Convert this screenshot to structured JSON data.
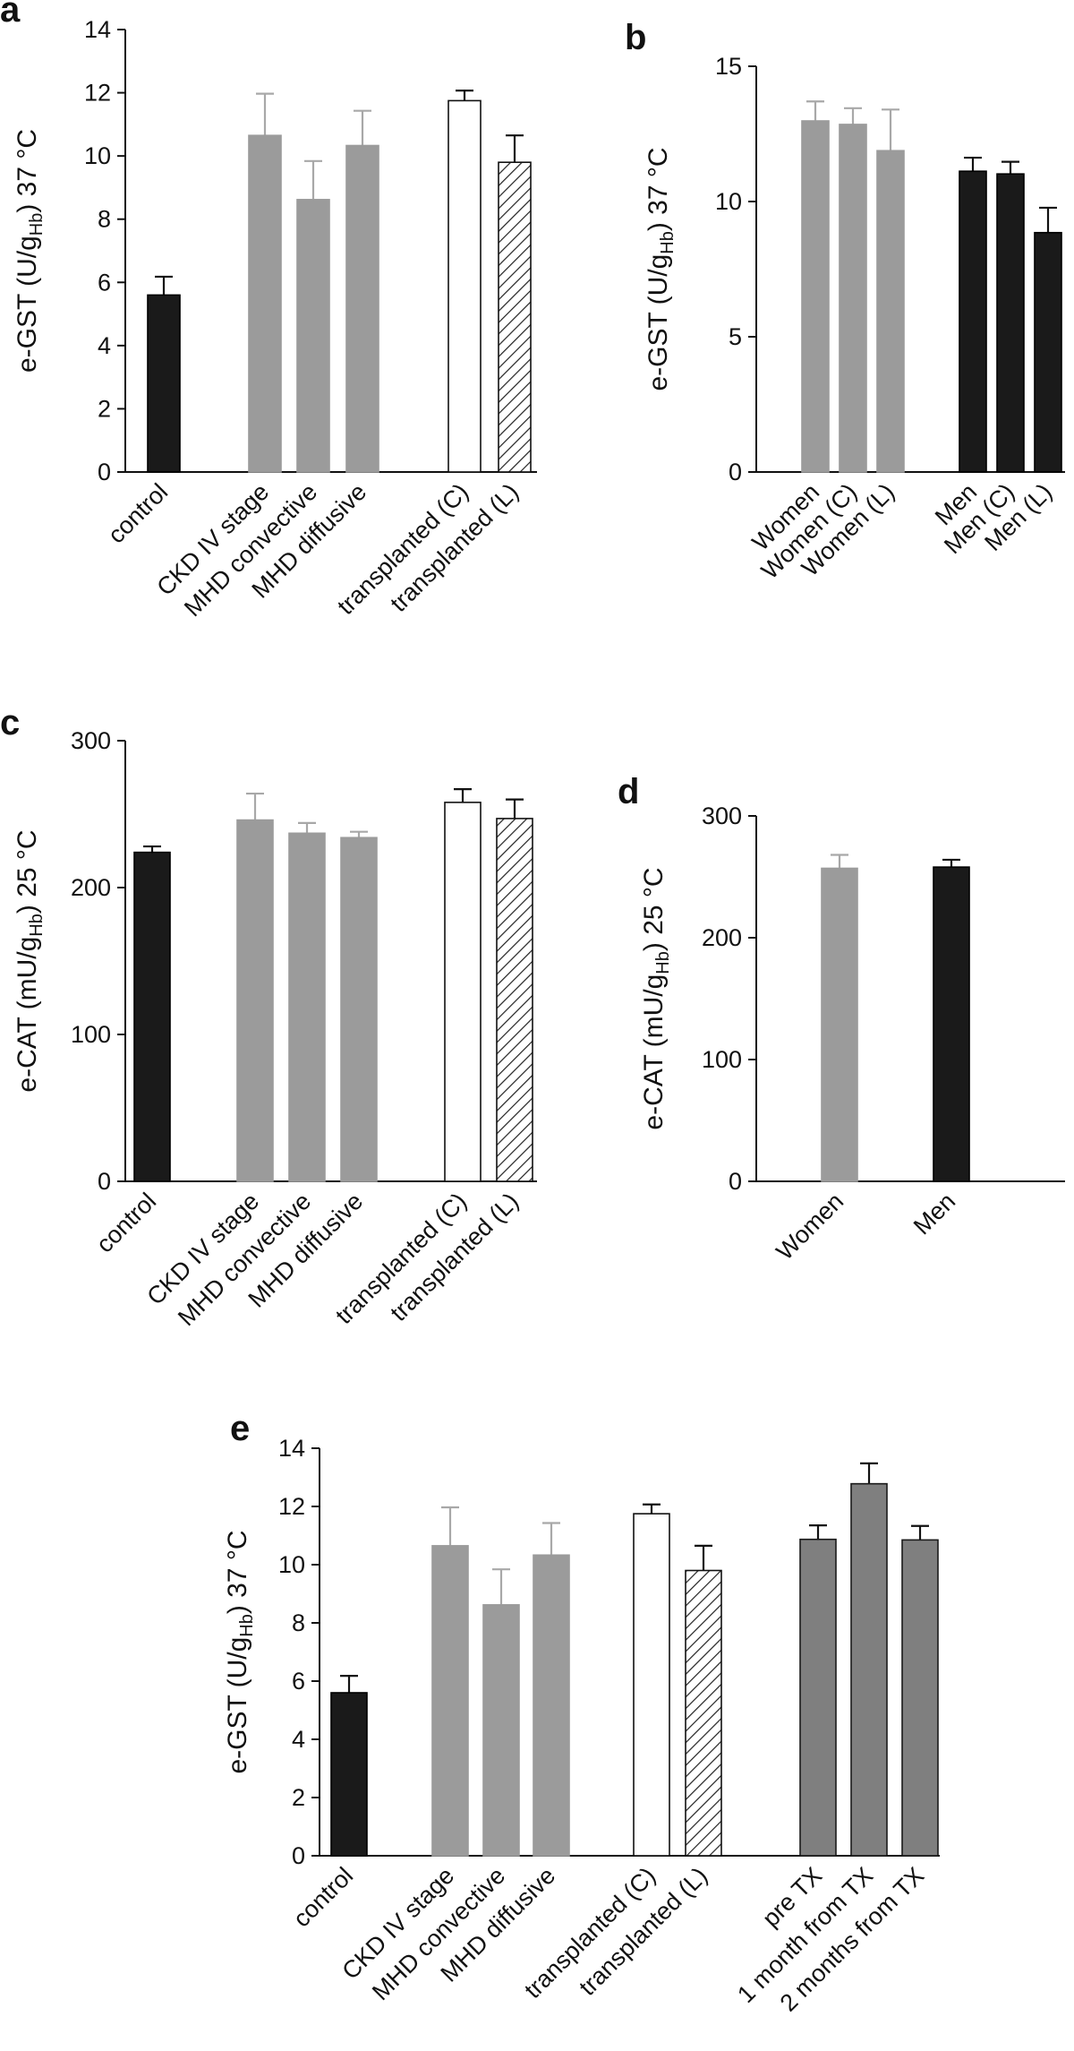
{
  "chart_data": [
    {
      "panel": "a",
      "type": "bar",
      "ylabel": [
        "e-GST (U/g",
        "Hb",
        ") 37 °C"
      ],
      "ylim": [
        0,
        14
      ],
      "yticks": [
        0,
        2,
        4,
        6,
        8,
        10,
        12,
        14
      ],
      "categories": [
        "control",
        "CKD IV stage",
        "MHD convective",
        "MHD diffusive",
        "transplanted (C)",
        "transplanted (L)"
      ],
      "values": [
        5.6,
        10.65,
        8.62,
        10.33,
        11.75,
        9.8
      ],
      "errors": [
        0.58,
        1.32,
        1.22,
        1.1,
        0.32,
        0.85
      ],
      "fills": [
        "black",
        "gray",
        "gray",
        "gray",
        "white",
        "hatch"
      ]
    },
    {
      "panel": "b",
      "type": "bar",
      "ylabel": [
        "e-GST (U/g",
        "Hb",
        ") 37 °C"
      ],
      "ylim": [
        0,
        15
      ],
      "yticks": [
        0,
        5,
        10,
        15
      ],
      "categories": [
        "Women",
        "Women (C)",
        "Women (L)",
        "Men",
        "Men (C)",
        "Men (L)"
      ],
      "values": [
        12.98,
        12.85,
        11.88,
        11.12,
        11.02,
        8.85
      ],
      "errors": [
        0.72,
        0.6,
        1.52,
        0.5,
        0.45,
        0.92
      ],
      "fills": [
        "gray",
        "gray",
        "gray",
        "black",
        "black",
        "black"
      ]
    },
    {
      "panel": "c",
      "type": "bar",
      "ylabel": [
        "e-CAT (mU/g",
        "Hb",
        ") 25 °C"
      ],
      "ylim": [
        0,
        300
      ],
      "yticks": [
        0,
        100,
        200,
        300
      ],
      "categories": [
        "control",
        "CKD IV stage",
        "MHD convective",
        "MHD diffusive",
        "transplanted (C)",
        "transplanted (L)"
      ],
      "values": [
        224,
        246,
        237,
        234,
        258,
        247
      ],
      "errors": [
        4,
        18,
        7,
        4,
        9,
        13
      ],
      "fills": [
        "black",
        "gray",
        "gray",
        "gray",
        "white",
        "hatch"
      ]
    },
    {
      "panel": "d",
      "type": "bar",
      "ylabel": [
        "e-CAT (mU/g",
        "Hb",
        ") 25 °C"
      ],
      "ylim": [
        0,
        300
      ],
      "yticks": [
        0,
        100,
        200,
        300
      ],
      "categories": [
        "Women",
        "Men"
      ],
      "values": [
        257,
        258
      ],
      "errors": [
        11,
        6
      ],
      "fills": [
        "gray",
        "black"
      ]
    },
    {
      "panel": "e",
      "type": "bar",
      "ylabel": [
        "e-GST (U/g",
        "Hb",
        ") 37 °C"
      ],
      "ylim": [
        0,
        14
      ],
      "yticks": [
        0,
        2,
        4,
        6,
        8,
        10,
        12,
        14
      ],
      "categories": [
        "control",
        "CKD IV stage",
        "MHD convective",
        "MHD diffusive",
        "transplanted (C)",
        "transplanted (L)",
        "pre TX",
        "1 month from TX",
        "2 months from TX"
      ],
      "values": [
        5.6,
        10.65,
        8.62,
        10.33,
        11.75,
        9.8,
        10.87,
        12.78,
        10.85
      ],
      "errors": [
        0.58,
        1.32,
        1.22,
        1.1,
        0.32,
        0.85,
        0.48,
        0.7,
        0.48
      ],
      "fills": [
        "black",
        "gray",
        "gray",
        "gray",
        "white",
        "hatch",
        "darkgray",
        "darkgray",
        "darkgray"
      ]
    }
  ],
  "colors": {
    "black": "#1a1a1a",
    "gray": "#9b9b9b",
    "darkgray": "#7f7f7f",
    "white": "#ffffff",
    "hatch_line": "#222222",
    "axis": "#111111",
    "error_gray": "#a8a8a8",
    "error_black": "#111111"
  }
}
